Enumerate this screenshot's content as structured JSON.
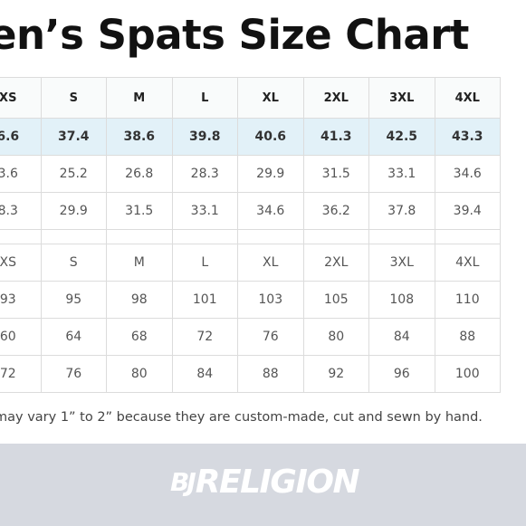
{
  "title": "en’s Spats Size Chart",
  "table": {
    "headers": [
      "XS",
      "S",
      "M",
      "L",
      "XL",
      "2XL",
      "3XL",
      "4XL"
    ],
    "rows": [
      [
        "6.6",
        "37.4",
        "38.6",
        "39.8",
        "40.6",
        "41.3",
        "42.5",
        "43.3"
      ],
      [
        "3.6",
        "25.2",
        "26.8",
        "28.3",
        "29.9",
        "31.5",
        "33.1",
        "34.6"
      ],
      [
        "8.3",
        "29.9",
        "31.5",
        "33.1",
        "34.6",
        "36.2",
        "37.8",
        "39.4"
      ]
    ],
    "rows2": [
      [
        "XS",
        "S",
        "M",
        "L",
        "XL",
        "2XL",
        "3XL",
        "4XL"
      ],
      [
        "93",
        "95",
        "98",
        "101",
        "103",
        "105",
        "108",
        "110"
      ],
      [
        "60",
        "64",
        "68",
        "72",
        "76",
        "80",
        "84",
        "88"
      ],
      [
        "72",
        "76",
        "80",
        "84",
        "88",
        "92",
        "96",
        "100"
      ]
    ]
  },
  "note": "may vary 1” to 2” because they are custom-made, cut and sewn by hand.",
  "brand": {
    "mark": "BJ",
    "name": "RELIGION"
  },
  "colors": {
    "highlight_row": "#e2f1f8",
    "footer_bg": "#d6d9e0",
    "logo": "#ffffff"
  }
}
